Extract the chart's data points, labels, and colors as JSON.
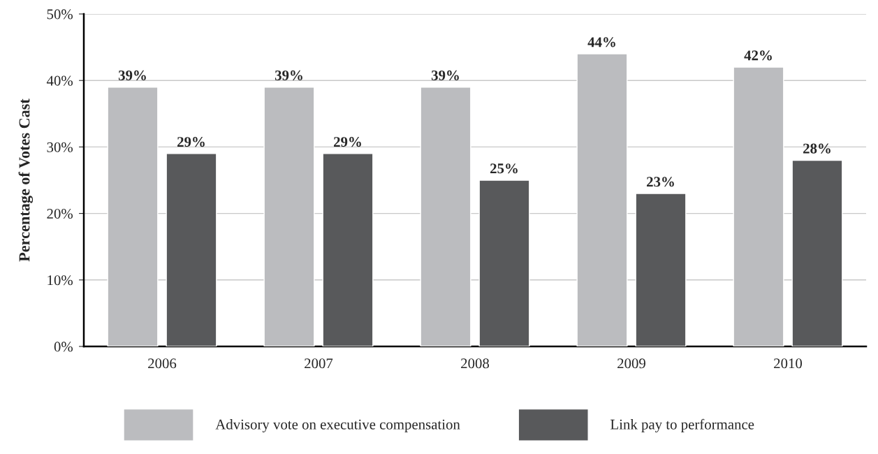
{
  "chart_data": {
    "type": "bar",
    "ylabel": "Percentage of Votes Cast",
    "categories": [
      "2006",
      "2007",
      "2008",
      "2009",
      "2010"
    ],
    "series": [
      {
        "name": "Advisory vote on executive compensation",
        "color": "#bbbcbf",
        "values": [
          39,
          39,
          39,
          44,
          42
        ],
        "value_labels": [
          "39%",
          "39%",
          "39%",
          "44%",
          "42%"
        ]
      },
      {
        "name": "Link pay to performance",
        "color": "#58595b",
        "values": [
          29,
          29,
          25,
          23,
          28
        ],
        "value_labels": [
          "29%",
          "29%",
          "25%",
          "23%",
          "28%"
        ]
      }
    ],
    "ylim": [
      0,
      50
    ],
    "yticks": [
      {
        "value": 0,
        "label": "0%"
      },
      {
        "value": 10,
        "label": "10%"
      },
      {
        "value": 20,
        "label": "20%"
      },
      {
        "value": 30,
        "label": "30%"
      },
      {
        "value": 40,
        "label": "40%"
      },
      {
        "value": 50,
        "label": "50%"
      }
    ],
    "grid": "y",
    "legend": "bottom"
  }
}
